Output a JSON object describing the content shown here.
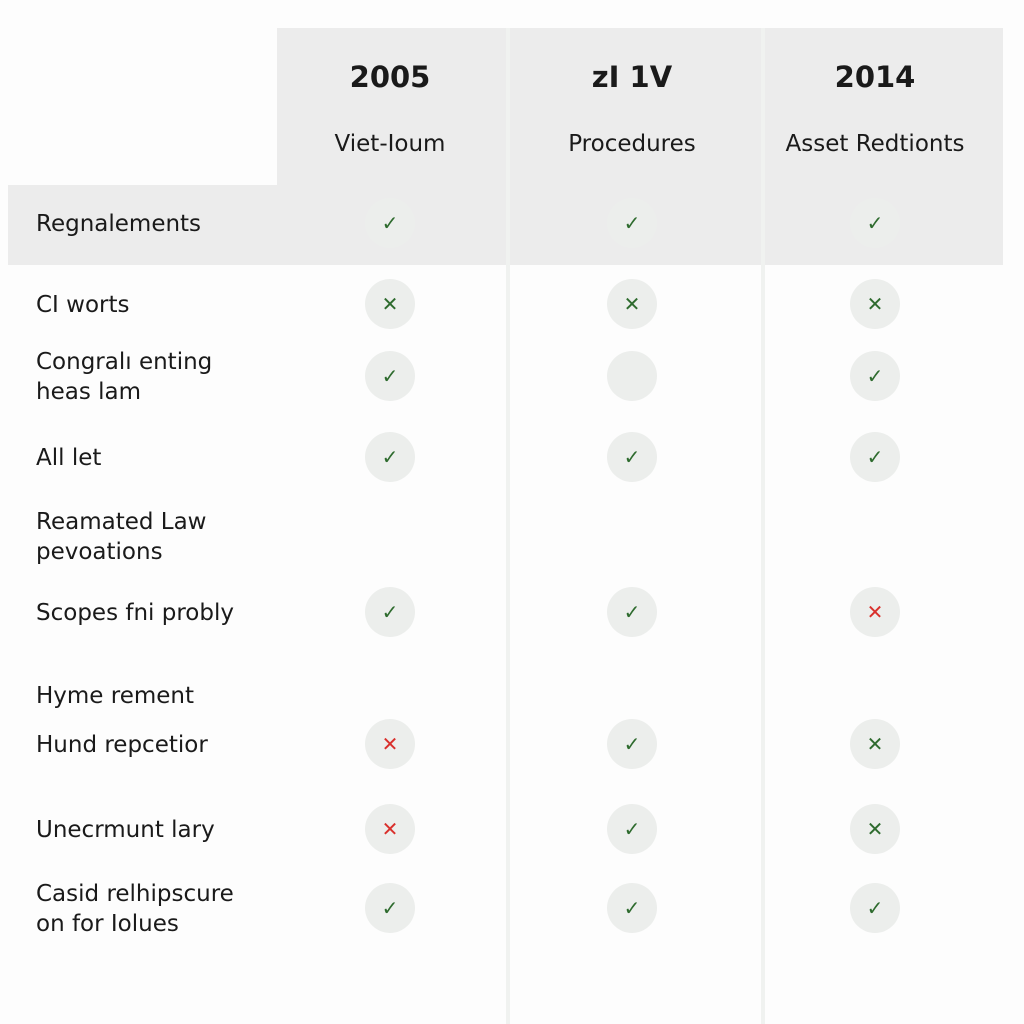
{
  "table": {
    "columns": [
      {
        "year": "2005",
        "subtitle": "Viet-Ioum"
      },
      {
        "year": "zI 1V",
        "subtitle": "Procedures"
      },
      {
        "year": "2014",
        "subtitle": "Asset Redtionts"
      }
    ],
    "rows": [
      {
        "label": [
          "Regnalements"
        ],
        "cells": [
          {
            "mark": "✓",
            "color": "#2e6b2e"
          },
          {
            "mark": "✓",
            "color": "#2e6b2e"
          },
          {
            "mark": "✓",
            "color": "#2e6b2e"
          }
        ]
      },
      {
        "label": [
          "CI worts"
        ],
        "cells": [
          {
            "mark": "✕",
            "color": "#2e6b2e"
          },
          {
            "mark": "✕",
            "color": "#2e6b2e"
          },
          {
            "mark": "✕",
            "color": "#2e6b2e"
          }
        ]
      },
      {
        "label": [
          "Congralı enting",
          "heas lam"
        ],
        "cells": [
          {
            "mark": "✓",
            "color": "#2e6b2e"
          },
          {
            "color": "#2e6b2e"
          },
          {
            "mark": "✓",
            "color": "#2e6b2e"
          }
        ]
      },
      {
        "label": [
          "All let"
        ],
        "cells": [
          {
            "mark": "✓",
            "color": "#2e6b2e"
          },
          {
            "mark": "✓",
            "color": "#2e6b2e"
          },
          {
            "mark": "✓",
            "color": "#2e6b2e"
          }
        ]
      },
      {
        "label": [
          "Reamated Law",
          "pevoations"
        ],
        "cells": [
          null,
          null,
          null
        ]
      },
      {
        "label": [
          "Scopes fni probly"
        ],
        "cells": [
          {
            "mark": "✓",
            "color": "#2e6b2e"
          },
          {
            "mark": "✓",
            "color": "#2e6b2e"
          },
          {
            "mark": "✕",
            "color": "#d9302c"
          }
        ]
      },
      {
        "label": [
          "Hyme rement"
        ],
        "cells": [
          null,
          null,
          null
        ]
      },
      {
        "label": [
          "Hund repcetior"
        ],
        "cells": [
          {
            "mark": "✕",
            "color": "#d9302c"
          },
          {
            "mark": "✓",
            "color": "#2e6b2e"
          },
          {
            "mark": "✕",
            "color": "#2e6b2e"
          }
        ]
      },
      {
        "label": [
          "Unecrmunt lary"
        ],
        "cells": [
          {
            "mark": "✕",
            "color": "#d9302c"
          },
          {
            "mark": "✓",
            "color": "#2e6b2e"
          },
          {
            "mark": "✕",
            "color": "#2e6b2e"
          }
        ]
      },
      {
        "label": [
          "Casid relhipscure",
          "on for Iolues"
        ],
        "cells": [
          {
            "mark": "✓",
            "color": "#2e6b2e"
          },
          {
            "mark": "✓",
            "color": "#2e6b2e"
          },
          {
            "mark": "✓",
            "color": "#2e6b2e"
          }
        ]
      }
    ]
  }
}
